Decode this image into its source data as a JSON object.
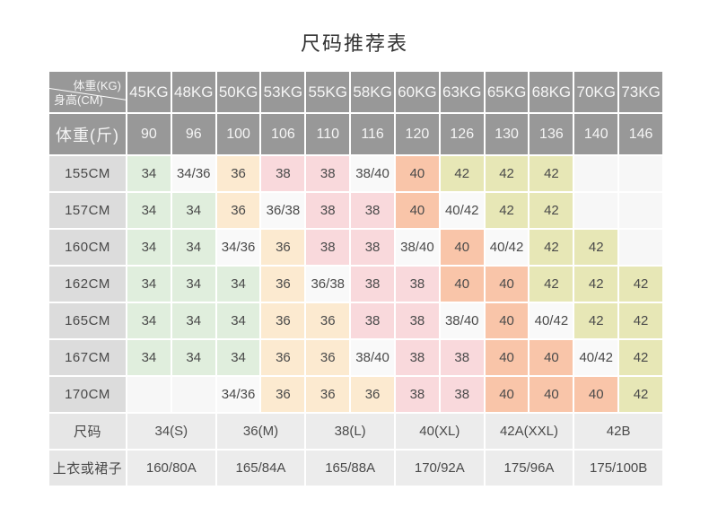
{
  "title": "尺码推荐表",
  "palette": {
    "header": "#989898",
    "rowLabel": "#dcdcdc",
    "footerLabel": "#e6e6e6",
    "footerValue": "#ececec",
    "green": "#e0eedd",
    "peach": "#fcead0",
    "pink": "#f9d9dc",
    "salmon": "#f9c5a9",
    "khaki": "#e7e7b6",
    "plain": "#f9f9f9",
    "empty": "#f7f7f7",
    "headerText": "#f5f5f5",
    "cellText": "#4a4a4a",
    "titleText": "#333333"
  },
  "chart_data": {
    "type": "table",
    "title": "尺码推荐表",
    "corner_top": "体重(KG)",
    "corner_bottom": "身高(CM)",
    "weights_kg": [
      "45KG",
      "48KG",
      "50KG",
      "53KG",
      "55KG",
      "58KG",
      "60KG",
      "63KG",
      "65KG",
      "68KG",
      "70KG",
      "73KG"
    ],
    "jin_label": "体重(斤)",
    "weights_jin": [
      "90",
      "96",
      "100",
      "106",
      "110",
      "116",
      "120",
      "126",
      "130",
      "136",
      "140",
      "146"
    ],
    "rows": [
      {
        "label": "155CM",
        "cells": [
          {
            "v": "34",
            "c": "green"
          },
          {
            "v": "34/36",
            "c": "plain"
          },
          {
            "v": "36",
            "c": "peach"
          },
          {
            "v": "38",
            "c": "pink"
          },
          {
            "v": "38",
            "c": "pink"
          },
          {
            "v": "38/40",
            "c": "plain"
          },
          {
            "v": "40",
            "c": "salmon"
          },
          {
            "v": "42",
            "c": "khaki"
          },
          {
            "v": "42",
            "c": "khaki"
          },
          {
            "v": "42",
            "c": "khaki"
          },
          {
            "v": "",
            "c": "empty"
          },
          {
            "v": "",
            "c": "empty"
          }
        ]
      },
      {
        "label": "157CM",
        "cells": [
          {
            "v": "34",
            "c": "green"
          },
          {
            "v": "34",
            "c": "green"
          },
          {
            "v": "36",
            "c": "peach"
          },
          {
            "v": "36/38",
            "c": "plain"
          },
          {
            "v": "38",
            "c": "pink"
          },
          {
            "v": "38",
            "c": "pink"
          },
          {
            "v": "40",
            "c": "salmon"
          },
          {
            "v": "40/42",
            "c": "plain"
          },
          {
            "v": "42",
            "c": "khaki"
          },
          {
            "v": "42",
            "c": "khaki"
          },
          {
            "v": "",
            "c": "empty"
          },
          {
            "v": "",
            "c": "empty"
          }
        ]
      },
      {
        "label": "160CM",
        "cells": [
          {
            "v": "34",
            "c": "green"
          },
          {
            "v": "34",
            "c": "green"
          },
          {
            "v": "34/36",
            "c": "plain"
          },
          {
            "v": "36",
            "c": "peach"
          },
          {
            "v": "38",
            "c": "pink"
          },
          {
            "v": "38",
            "c": "pink"
          },
          {
            "v": "38/40",
            "c": "plain"
          },
          {
            "v": "40",
            "c": "salmon"
          },
          {
            "v": "40/42",
            "c": "plain"
          },
          {
            "v": "42",
            "c": "khaki"
          },
          {
            "v": "42",
            "c": "khaki"
          },
          {
            "v": "",
            "c": "empty"
          }
        ]
      },
      {
        "label": "162CM",
        "cells": [
          {
            "v": "34",
            "c": "green"
          },
          {
            "v": "34",
            "c": "green"
          },
          {
            "v": "34",
            "c": "green"
          },
          {
            "v": "36",
            "c": "peach"
          },
          {
            "v": "36/38",
            "c": "plain"
          },
          {
            "v": "38",
            "c": "pink"
          },
          {
            "v": "38",
            "c": "pink"
          },
          {
            "v": "40",
            "c": "salmon"
          },
          {
            "v": "40",
            "c": "salmon"
          },
          {
            "v": "42",
            "c": "khaki"
          },
          {
            "v": "42",
            "c": "khaki"
          },
          {
            "v": "42",
            "c": "khaki"
          }
        ]
      },
      {
        "label": "165CM",
        "cells": [
          {
            "v": "34",
            "c": "green"
          },
          {
            "v": "34",
            "c": "green"
          },
          {
            "v": "34",
            "c": "green"
          },
          {
            "v": "36",
            "c": "peach"
          },
          {
            "v": "36",
            "c": "peach"
          },
          {
            "v": "38",
            "c": "pink"
          },
          {
            "v": "38",
            "c": "pink"
          },
          {
            "v": "38/40",
            "c": "plain"
          },
          {
            "v": "40",
            "c": "salmon"
          },
          {
            "v": "40/42",
            "c": "plain"
          },
          {
            "v": "42",
            "c": "khaki"
          },
          {
            "v": "42",
            "c": "khaki"
          }
        ]
      },
      {
        "label": "167CM",
        "cells": [
          {
            "v": "34",
            "c": "green"
          },
          {
            "v": "34",
            "c": "green"
          },
          {
            "v": "34",
            "c": "green"
          },
          {
            "v": "36",
            "c": "peach"
          },
          {
            "v": "36",
            "c": "peach"
          },
          {
            "v": "38/40",
            "c": "plain"
          },
          {
            "v": "38",
            "c": "pink"
          },
          {
            "v": "38",
            "c": "pink"
          },
          {
            "v": "40",
            "c": "salmon"
          },
          {
            "v": "40",
            "c": "salmon"
          },
          {
            "v": "40/42",
            "c": "plain"
          },
          {
            "v": "42",
            "c": "khaki"
          }
        ]
      },
      {
        "label": "170CM",
        "cells": [
          {
            "v": "",
            "c": "empty"
          },
          {
            "v": "",
            "c": "empty"
          },
          {
            "v": "34/36",
            "c": "plain"
          },
          {
            "v": "36",
            "c": "peach"
          },
          {
            "v": "36",
            "c": "peach"
          },
          {
            "v": "36",
            "c": "peach"
          },
          {
            "v": "38",
            "c": "pink"
          },
          {
            "v": "38",
            "c": "pink"
          },
          {
            "v": "40",
            "c": "salmon"
          },
          {
            "v": "40",
            "c": "salmon"
          },
          {
            "v": "40",
            "c": "salmon"
          },
          {
            "v": "42",
            "c": "khaki"
          }
        ]
      }
    ],
    "size_row": {
      "label": "尺码",
      "values": [
        "34(S)",
        "36(M)",
        "38(L)",
        "40(XL)",
        "42A(XXL)",
        "42B"
      ]
    },
    "garment_row": {
      "label": "上衣或裙子",
      "values": [
        "160/80A",
        "165/84A",
        "165/88A",
        "170/92A",
        "175/96A",
        "175/100B"
      ]
    }
  }
}
